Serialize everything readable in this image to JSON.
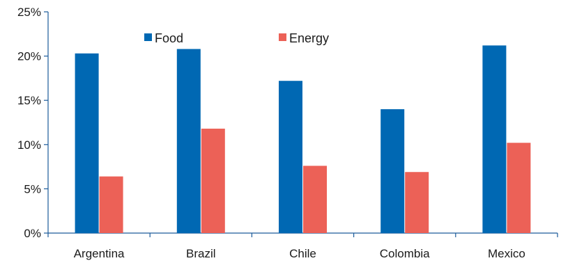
{
  "chart_data": {
    "type": "bar",
    "title": "",
    "xlabel": "",
    "ylabel": "",
    "categories": [
      "Argentina",
      "Brazil",
      "Chile",
      "Colombia",
      "Mexico"
    ],
    "series": [
      {
        "name": "Food",
        "color": "#0068b3",
        "values": [
          20.3,
          20.8,
          17.2,
          14.0,
          21.2
        ]
      },
      {
        "name": "Energy",
        "color": "#ec6157",
        "values": [
          6.4,
          11.8,
          7.6,
          6.9,
          10.2
        ]
      }
    ],
    "ylim": [
      0,
      25
    ],
    "yticks": [
      0,
      5,
      10,
      15,
      20,
      25
    ],
    "ytick_labels": [
      "0%",
      "5%",
      "10%",
      "15%",
      "20%",
      "25%"
    ],
    "grid": false,
    "legend": {
      "placement": "top-center",
      "entries": [
        "Food",
        "Energy"
      ]
    },
    "axis_color": "#1a5a9a"
  }
}
